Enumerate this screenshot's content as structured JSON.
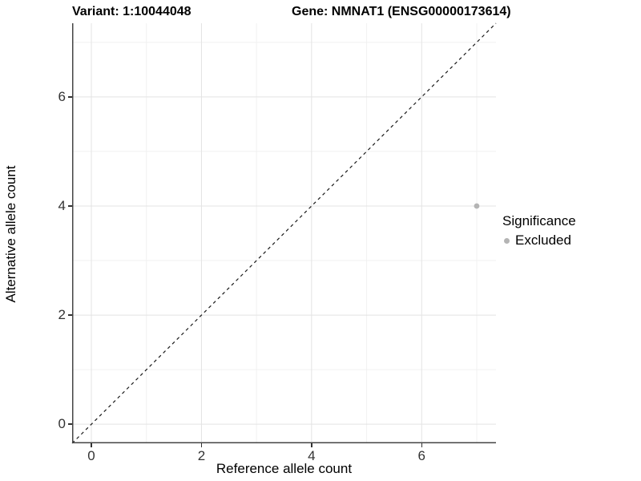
{
  "header": {
    "variant_title": "Variant: 1:10044048",
    "gene_title": "Gene: NMNAT1 (ENSG00000173614)"
  },
  "chart_data": {
    "type": "scatter",
    "xlabel": "Reference allele count",
    "ylabel": "Alternative allele count",
    "xlim": [
      -0.35,
      7.35
    ],
    "ylim": [
      -0.35,
      7.35
    ],
    "x_major_ticks": [
      0,
      2,
      4,
      6
    ],
    "y_major_ticks": [
      0,
      2,
      4,
      6
    ],
    "x_minor_gridlines": [
      1,
      3,
      5,
      7
    ],
    "y_minor_gridlines": [
      1,
      3,
      5,
      7
    ],
    "grid": "on",
    "identity_line": {
      "style": "dashed",
      "slope": 1,
      "intercept": 0
    },
    "series": [
      {
        "name": "Excluded",
        "color": "#b4b4b4",
        "points": [
          {
            "x": 7,
            "y": 4
          }
        ]
      }
    ],
    "legend": {
      "title": "Significance",
      "position": "right",
      "items": [
        {
          "label": "Excluded",
          "color": "#b4b4b4"
        }
      ]
    }
  },
  "colors": {
    "background": "#ffffff",
    "axis_line": "#444444",
    "tick_mark": "#333333",
    "tick_label": "#333333",
    "grid_major": "#e3e3e3",
    "grid_minor": "#f1f1f1",
    "identity_line": "#1a1a1a",
    "title_text": "#000000"
  }
}
